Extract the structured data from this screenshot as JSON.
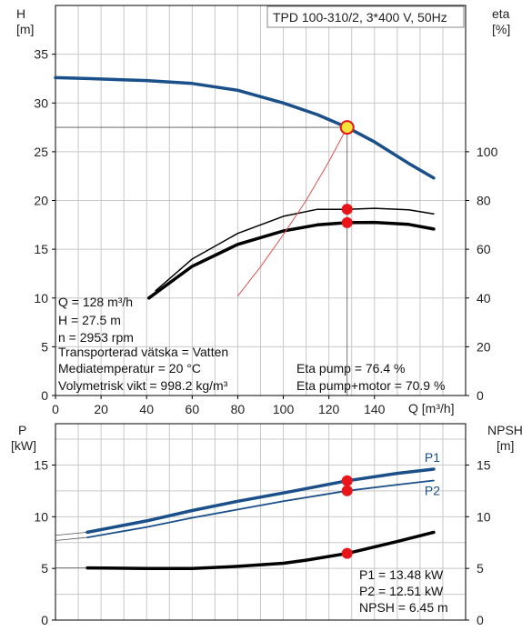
{
  "title": "TPD 100-310/2, 3*400 V, 50Hz",
  "top_chart": {
    "left_axis_label": "H",
    "left_axis_unit": "[m]",
    "right_axis_label": "eta",
    "right_axis_unit": "[%]",
    "x_axis_label": "Q [m³/h]"
  },
  "bottom_chart": {
    "left_axis_label": "P",
    "left_axis_unit": "[kW]",
    "right_axis_label": "NPSH",
    "right_axis_unit": "[m]"
  },
  "info": {
    "q": "Q = 128 m³/h",
    "h": "H = 27.5 m",
    "n": "n = 2953 rpm",
    "fluid": "Transporterad vätska = Vatten",
    "temp": "Mediatemperatur = 20 °C",
    "density": "Volymetrisk vikt = 998.2 kg/m³",
    "eta_pump": "Eta pump = 76.4 %",
    "eta_total": "Eta pump+motor = 70.9 %",
    "p1": "P1 = 13.48 kW",
    "p2": "P2 = 12.51 kW",
    "npsh": "NPSH = 6.45 m"
  },
  "colors": {
    "curve_blue": "#1a4f8a",
    "marker_red": "#e8161a",
    "op_marker_fill": "#f5e33a",
    "system_curve": "#e05050",
    "grid": "#c8c8c8"
  },
  "chart_data": [
    {
      "type": "line",
      "xlim": [
        0,
        180
      ],
      "ylim_left": [
        0,
        40
      ],
      "ylim_right": [
        0,
        160
      ],
      "x_ticks": [
        0,
        20,
        40,
        60,
        80,
        100,
        120,
        140
      ],
      "y_ticks_left": [
        0,
        5,
        10,
        15,
        20,
        25,
        30,
        35
      ],
      "y_ticks_right": [
        0,
        20,
        40,
        60,
        80,
        100
      ],
      "series": [
        {
          "axis": "left",
          "style": "blue",
          "x": [
            0,
            14,
            40,
            60,
            80,
            100,
            115,
            128,
            140,
            155,
            166
          ],
          "y": [
            32.6,
            32.5,
            32.3,
            32.0,
            31.3,
            30.0,
            28.8,
            27.5,
            26.0,
            23.8,
            22.3
          ]
        },
        {
          "axis": "right",
          "style": "thin",
          "x": [
            44,
            60,
            80,
            100,
            115,
            128,
            140,
            155,
            166
          ],
          "y": [
            43,
            56,
            66.5,
            73.5,
            76.4,
            76.4,
            76.8,
            76.2,
            74.5
          ]
        },
        {
          "axis": "right",
          "style": "thick",
          "x": [
            41,
            60,
            80,
            100,
            115,
            128,
            140,
            155,
            166
          ],
          "y": [
            40,
            53,
            62,
            67.5,
            70.0,
            70.9,
            71.0,
            70.2,
            68.3
          ]
        },
        {
          "axis": "left",
          "style": "system",
          "x": [
            80,
            90,
            100,
            110,
            120,
            128
          ],
          "y": [
            10.2,
            13.2,
            16.5,
            20.0,
            24.0,
            27.5
          ]
        }
      ],
      "markers": [
        {
          "axis": "left",
          "x": 128,
          "y": 27.5,
          "kind": "operating"
        },
        {
          "axis": "right",
          "x": 128,
          "y": 76.4,
          "kind": "point"
        },
        {
          "axis": "right",
          "x": 128,
          "y": 70.9,
          "kind": "point"
        }
      ]
    },
    {
      "type": "line",
      "xlim": [
        0,
        180
      ],
      "ylim_left": [
        0,
        19
      ],
      "ylim_right": [
        0,
        19
      ],
      "y_ticks_left": [
        0,
        5,
        10,
        15
      ],
      "y_ticks_right": [
        0,
        5,
        10,
        15
      ],
      "series": [
        {
          "name": "P1",
          "axis": "left",
          "style": "blue-thick",
          "x": [
            14,
            40,
            60,
            80,
            100,
            128,
            150,
            166
          ],
          "y": [
            8.5,
            9.6,
            10.6,
            11.5,
            12.3,
            13.48,
            14.2,
            14.6
          ]
        },
        {
          "name": "P2",
          "axis": "left",
          "style": "blue-thin",
          "x": [
            14,
            40,
            60,
            80,
            100,
            128,
            150,
            166
          ],
          "y": [
            8.0,
            9.0,
            9.9,
            10.7,
            11.5,
            12.51,
            13.1,
            13.5
          ]
        },
        {
          "axis": "right",
          "style": "black",
          "x": [
            14,
            40,
            60,
            80,
            100,
            110,
            128,
            150,
            166
          ],
          "y": [
            5.05,
            5.0,
            5.0,
            5.2,
            5.5,
            5.8,
            6.45,
            7.6,
            8.5
          ]
        }
      ],
      "markers": [
        {
          "axis": "left",
          "x": 128,
          "y": 13.48
        },
        {
          "axis": "left",
          "x": 128,
          "y": 12.51
        },
        {
          "axis": "right",
          "x": 128,
          "y": 6.45
        }
      ]
    }
  ]
}
